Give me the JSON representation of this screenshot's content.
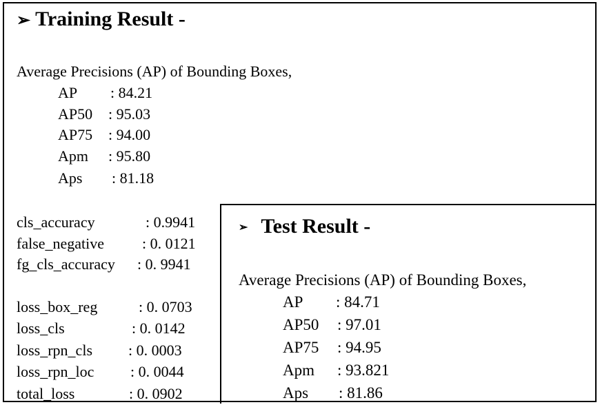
{
  "training": {
    "arrow": "➢",
    "title": "Training Result -",
    "ap_intro": "Average Precisions (AP) of Bounding Boxes,",
    "ap_metrics": [
      {
        "label": "AP",
        "value": ": 84.21"
      },
      {
        "label": "AP50",
        "value": ": 95.03"
      },
      {
        "label": "AP75",
        "value": ": 94.00"
      },
      {
        "label": "Apm",
        "value": ": 95.80"
      },
      {
        "label": "Aps",
        "value": ": 81.18"
      }
    ],
    "accuracy_metrics": [
      {
        "label": "cls_accuracy",
        "value": ": 0.9941"
      },
      {
        "label": "false_negative",
        "value": ": 0. 0121"
      },
      {
        "label": "fg_cls_accuracy",
        "value": ": 0. 9941"
      }
    ],
    "loss_metrics": [
      {
        "label": "loss_box_reg",
        "value": ": 0. 0703"
      },
      {
        "label": "loss_cls",
        "value": ": 0. 0142"
      },
      {
        "label": "loss_rpn_cls",
        "value": ": 0. 0003"
      },
      {
        "label": "loss_rpn_loc",
        "value": ": 0. 0044"
      },
      {
        "label": "total_loss",
        "value": ": 0. 0902"
      }
    ]
  },
  "test": {
    "arrow": "➢",
    "title": "Test Result -",
    "ap_intro": "Average Precisions (AP) of Bounding Boxes,",
    "ap_metrics": [
      {
        "label": "AP",
        "value": ": 84.71"
      },
      {
        "label": "AP50",
        "value": ": 97.01"
      },
      {
        "label": "AP75",
        "value": ": 94.95"
      },
      {
        "label": "Apm",
        "value": ": 93.821"
      },
      {
        "label": "Aps",
        "value": ": 81.86"
      }
    ]
  }
}
